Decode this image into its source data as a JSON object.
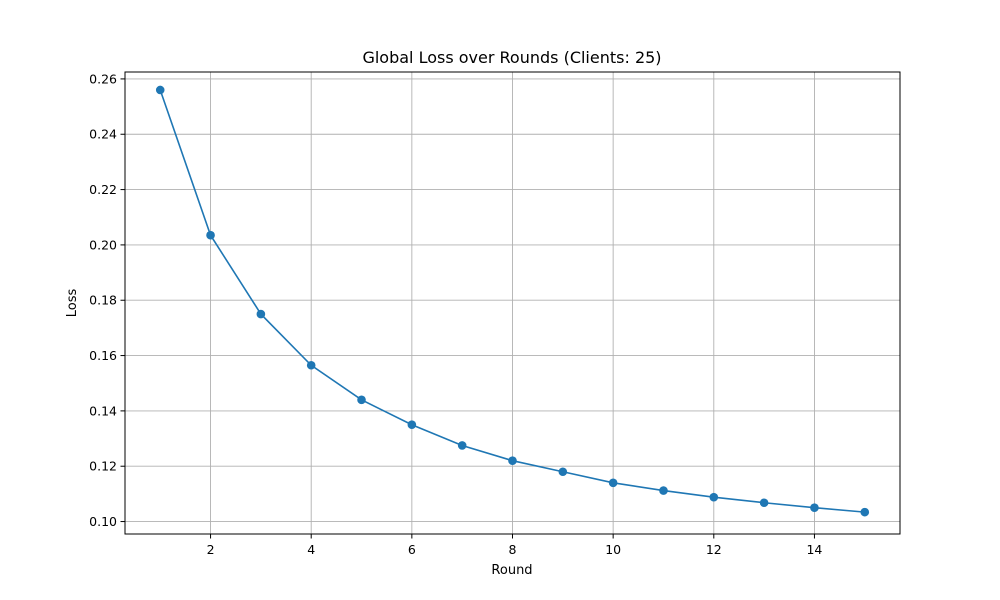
{
  "chart_data": {
    "type": "line",
    "title": "Global Loss over Rounds (Clients: 25)",
    "xlabel": "Round",
    "ylabel": "Loss",
    "xlim": [
      0.3,
      15.7
    ],
    "ylim": [
      0.0955,
      0.2625
    ],
    "xticks": [
      2,
      4,
      6,
      8,
      10,
      12,
      14
    ],
    "xtick_labels": [
      "2",
      "4",
      "6",
      "8",
      "10",
      "12",
      "14"
    ],
    "yticks": [
      0.1,
      0.12,
      0.14,
      0.16,
      0.18,
      0.2,
      0.22,
      0.24,
      0.26
    ],
    "ytick_labels": [
      "0.10",
      "0.12",
      "0.14",
      "0.16",
      "0.18",
      "0.20",
      "0.22",
      "0.24",
      "0.26"
    ],
    "grid": true,
    "series": [
      {
        "color": "#1f77b4",
        "marker": "circle",
        "x": [
          1,
          2,
          3,
          4,
          5,
          6,
          7,
          8,
          9,
          10,
          11,
          12,
          13,
          14,
          15
        ],
        "y": [
          0.256,
          0.2035,
          0.175,
          0.1565,
          0.144,
          0.135,
          0.1275,
          0.122,
          0.118,
          0.114,
          0.1112,
          0.1088,
          0.1068,
          0.105,
          0.1034
        ]
      }
    ]
  }
}
